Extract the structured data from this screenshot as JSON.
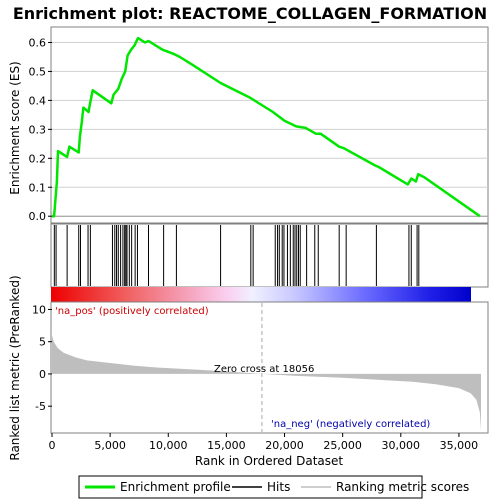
{
  "chart_data": {
    "type": "line",
    "title": "Enrichment plot: REACTOME_COLLAGEN_FORMATION",
    "colors": {
      "es_line": "#00e600",
      "hits": "#000000",
      "metric_fill": "#bebebe",
      "zero_cross": "#aaaaaa",
      "label_pos": "#cc0000",
      "label_neg": "#0000aa"
    },
    "top_panel": {
      "ylabel": "Enrichment score (ES)",
      "yticks": [
        "0.0",
        "0.1",
        "0.2",
        "0.3",
        "0.4",
        "0.5",
        "0.6"
      ],
      "ylim": [
        -0.02,
        0.65
      ],
      "grid": true,
      "es_profile": [
        [
          0,
          0.0
        ],
        [
          180,
          0.0
        ],
        [
          300,
          0.06
        ],
        [
          420,
          0.12
        ],
        [
          520,
          0.225
        ],
        [
          1300,
          0.205
        ],
        [
          1500,
          0.24
        ],
        [
          2300,
          0.22
        ],
        [
          2400,
          0.275
        ],
        [
          2550,
          0.32
        ],
        [
          2700,
          0.375
        ],
        [
          3150,
          0.36
        ],
        [
          3250,
          0.385
        ],
        [
          3500,
          0.435
        ],
        [
          5100,
          0.39
        ],
        [
          5300,
          0.42
        ],
        [
          5700,
          0.44
        ],
        [
          6000,
          0.475
        ],
        [
          6300,
          0.5
        ],
        [
          6500,
          0.555
        ],
        [
          6800,
          0.575
        ],
        [
          7100,
          0.59
        ],
        [
          7400,
          0.615
        ],
        [
          8000,
          0.6
        ],
        [
          8300,
          0.605
        ],
        [
          9500,
          0.575
        ],
        [
          10500,
          0.56
        ],
        [
          11000,
          0.55
        ],
        [
          12000,
          0.525
        ],
        [
          14500,
          0.46
        ],
        [
          17000,
          0.41
        ],
        [
          19000,
          0.36
        ],
        [
          20000,
          0.33
        ],
        [
          21000,
          0.31
        ],
        [
          21800,
          0.305
        ],
        [
          22700,
          0.285
        ],
        [
          23100,
          0.285
        ],
        [
          24700,
          0.24
        ],
        [
          25100,
          0.235
        ],
        [
          27800,
          0.175
        ],
        [
          28100,
          0.17
        ],
        [
          30600,
          0.11
        ],
        [
          30900,
          0.13
        ],
        [
          31300,
          0.12
        ],
        [
          31500,
          0.145
        ],
        [
          32000,
          0.135
        ],
        [
          36800,
          0.0
        ]
      ]
    },
    "hits": [
      200,
      350,
      1300,
      2300,
      2450,
      3100,
      3300,
      5200,
      5400,
      5550,
      5700,
      5900,
      6100,
      6250,
      6350,
      6450,
      6650,
      6850,
      7150,
      7350,
      8300,
      9600,
      10700,
      14500,
      17100,
      17300,
      19200,
      19400,
      19550,
      19800,
      19950,
      20250,
      20500,
      20750,
      20900,
      21050,
      21200,
      21350,
      21900,
      22600,
      22900,
      24700,
      25300,
      27900,
      30700,
      30900,
      31400,
      31550
    ],
    "bottom_panel": {
      "ylabel": "Ranked list metric (PreRanked)",
      "xlabel": "Rank in Ordered Dataset",
      "yticks": [
        "10",
        "5",
        "0",
        "-5"
      ],
      "ylim": [
        -9,
        11
      ],
      "xticks": [
        "0",
        "5,000",
        "10,000",
        "15,000",
        "20,000",
        "25,000",
        "30,000",
        "35,000"
      ],
      "xlim": [
        0,
        37500
      ],
      "metric_profile": [
        [
          0,
          6.0
        ],
        [
          150,
          5.0
        ],
        [
          500,
          4.0
        ],
        [
          1000,
          3.3
        ],
        [
          2000,
          2.6
        ],
        [
          3000,
          2.1
        ],
        [
          5000,
          1.7
        ],
        [
          7000,
          1.3
        ],
        [
          9000,
          1.0
        ],
        [
          12000,
          0.7
        ],
        [
          15000,
          0.4
        ],
        [
          18056,
          0.0
        ],
        [
          21000,
          -0.3
        ],
        [
          25000,
          -0.6
        ],
        [
          28000,
          -0.9
        ],
        [
          31000,
          -1.2
        ],
        [
          33000,
          -1.6
        ],
        [
          35000,
          -2.2
        ],
        [
          36000,
          -3.0
        ],
        [
          36500,
          -4.0
        ],
        [
          36800,
          -6.0
        ],
        [
          36900,
          -8.8
        ]
      ],
      "zero_cross_rank": 18056,
      "zero_cross_label": "Zero cross at 18056",
      "pos_label": "'na_pos' (positively correlated)",
      "neg_label": "'na_neg' (negatively correlated)"
    },
    "legend": {
      "position": "bottom",
      "entries": [
        "Enrichment profile",
        "Hits",
        "Ranking metric scores"
      ]
    }
  }
}
